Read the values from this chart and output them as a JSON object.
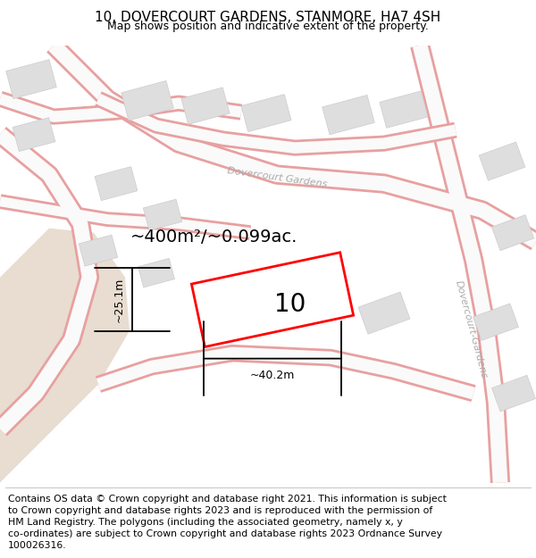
{
  "title": "10, DOVERCOURT GARDENS, STANMORE, HA7 4SH",
  "subtitle": "Map shows position and indicative extent of the property.",
  "footer": "Contains OS data © Crown copyright and database right 2021. This information is subject\nto Crown copyright and database rights 2023 and is reproduced with the permission of\nHM Land Registry. The polygons (including the associated geometry, namely x, y\nco-ordinates) are subject to Crown copyright and database rights 2023 Ordnance Survey\n100026316.",
  "map_bg": "#f7f4f0",
  "land_color": "#e8ddd0",
  "road_edge_color": "#e8a0a0",
  "road_fill_color": "#fafafa",
  "block_color": "#dedede",
  "block_edge_color": "#cccccc",
  "property_edge_color": "#ff0000",
  "property_fill_color": "#ffffff",
  "area_text": "~400m²/~0.099ac.",
  "number_text": "10",
  "dim_width_text": "~40.2m",
  "dim_height_text": "~25.1m",
  "road_label_1": "Dovercourt Gardens",
  "road_label_2": "Dovercourt-Gardens",
  "road_label_color": "#aaaaaa",
  "dim_color": "#000000",
  "title_fontsize": 11,
  "subtitle_fontsize": 9,
  "footer_fontsize": 7.8,
  "area_fontsize": 14,
  "number_fontsize": 20,
  "dim_fontsize": 9,
  "road_label_fontsize": 8
}
